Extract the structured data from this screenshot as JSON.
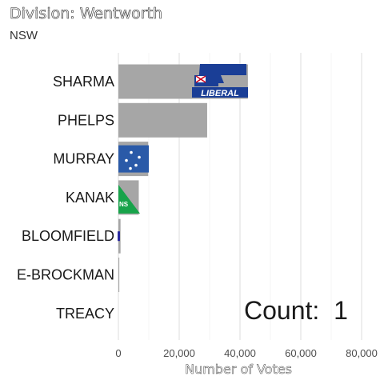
{
  "chart_data": {
    "type": "bar",
    "orientation": "horizontal",
    "title": "Division: Wentworth",
    "subtitle": "NSW",
    "xlabel": "Number of Votes",
    "ylabel": "",
    "xlim": [
      0,
      80000
    ],
    "x_ticks": [
      0,
      20000,
      40000,
      60000,
      80000
    ],
    "x_tick_labels": [
      "0",
      "20,000",
      "40,000",
      "60,000",
      "80,000"
    ],
    "grid": true,
    "categories": [
      "SHARMA",
      "PHELPS",
      "MURRAY",
      "KANAK",
      "BLOOMFIELD",
      "E-BROCKMAN",
      "TREACY"
    ],
    "values": [
      42600,
      29200,
      9800,
      6700,
      700,
      300,
      0
    ],
    "party_logos": [
      "liberal",
      "none",
      "labor",
      "greens",
      "unknown",
      "none",
      "none"
    ],
    "bar_color": "#a6a6a6",
    "annotation": "Count:  1"
  }
}
